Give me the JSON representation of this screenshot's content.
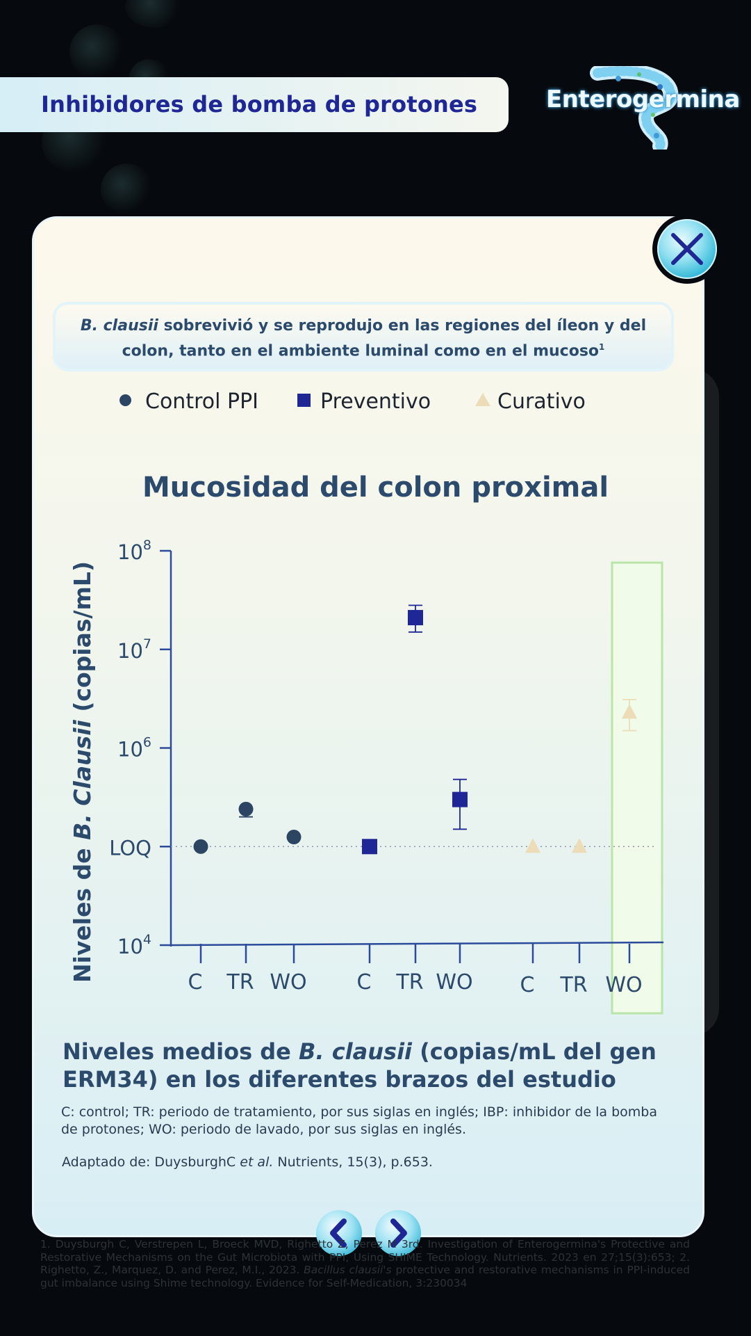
{
  "header": {
    "title": "Inhibidores de bomba de protones",
    "logo_text": "Enterogermina"
  },
  "callout": {
    "species": "B. clausii",
    "text": " sobrevivió y se reprodujo en las regiones del íleon y del colon, tanto en el ambiente luminal como en el mucoso",
    "superscript": "1"
  },
  "legend": [
    {
      "label": "Control PPI",
      "marker": "circle",
      "color": "#2b4563"
    },
    {
      "label": "Preventivo",
      "marker": "square",
      "color": "#1f2796"
    },
    {
      "label": "Curativo",
      "marker": "triangle",
      "color": "#ecdcb8"
    }
  ],
  "chart_data": {
    "type": "scatter",
    "title": "Mucosidad del colon proximal",
    "ylabel_prefix": "Niveles de ",
    "ylabel_italic": "B. Clausii",
    "ylabel_suffix": " (copias/mL)",
    "y_scale": "log",
    "ylim": [
      10000,
      100000000
    ],
    "y_ticks": [
      {
        "value": 10000,
        "label_base": "10",
        "label_exp": "4"
      },
      {
        "value": 100000,
        "label_base": "LOQ",
        "label_exp": ""
      },
      {
        "value": 1000000,
        "label_base": "10",
        "label_exp": "6"
      },
      {
        "value": 10000000,
        "label_base": "10",
        "label_exp": "7"
      },
      {
        "value": 100000000,
        "label_base": "10",
        "label_exp": "8"
      }
    ],
    "loq": 100000,
    "groups": [
      {
        "name": "Control PPI",
        "marker": "circle",
        "color": "#2b4563",
        "points": [
          {
            "x": "C",
            "y": 100000,
            "err_low": null,
            "err_high": null,
            "highlight": false
          },
          {
            "x": "TR",
            "y": 240000,
            "err_low": 200000,
            "err_high": 240000,
            "highlight": false
          },
          {
            "x": "WO",
            "y": 125000,
            "err_low": null,
            "err_high": null,
            "highlight": false
          }
        ]
      },
      {
        "name": "Preventivo",
        "marker": "square",
        "color": "#1f2796",
        "points": [
          {
            "x": "C",
            "y": 100000,
            "err_low": null,
            "err_high": null,
            "highlight": false
          },
          {
            "x": "TR",
            "y": 21000000,
            "err_low": 15000000,
            "err_high": 28000000,
            "highlight": true
          },
          {
            "x": "WO",
            "y": 300000,
            "err_low": 150000,
            "err_high": 480000,
            "highlight": true
          }
        ]
      },
      {
        "name": "Curativo",
        "marker": "triangle",
        "color": "#ecdcb8",
        "points": [
          {
            "x": "C",
            "y": 100000,
            "err_low": null,
            "err_high": null,
            "highlight": false
          },
          {
            "x": "TR",
            "y": 100000,
            "err_low": null,
            "err_high": null,
            "highlight": false
          },
          {
            "x": "WO",
            "y": 2300000,
            "err_low": 1500000,
            "err_high": 3100000,
            "highlight": true
          }
        ]
      }
    ]
  },
  "caption": {
    "title_a": "Niveles medios de ",
    "title_italic": "B. clausii",
    "title_b": " (copias/mL del gen ERM34) en los diferentes brazos del estudio",
    "note": "C: control; TR: periodo de tratamiento, por sus siglas en inglés; IBP: inhibidor de la bomba de protones; WO: periodo de lavado, por sus siglas en inglés.",
    "source_a": "Adaptado de: DuysburghC ",
    "source_italic": "et al.",
    "source_b": " Nutrients, 15(3), p.653."
  },
  "references": {
    "line_a": "1. Duysburgh C, Verstrepen L, Broeck MVD, Righetto Z, Perez M 3rd. Investigation of Enterogermina's Protective and Restorative Mechanisms on the Gut Microbiota with PPI, Using SHIME Technology. Nutrients. 2023 en 27;15(3):653; 2. Righetto, Z., Marquez, D. and Perez, M.I., 2023. ",
    "italic": "Bacillus clausii's",
    "line_b": " protective and restorative mechanisms in PPI-induced gut imbalance using Shime technology. Evidence for Self-Medication, 3:230034"
  },
  "icons": {
    "close": "close-icon",
    "prev": "chevron-left-icon",
    "next": "chevron-right-icon"
  }
}
